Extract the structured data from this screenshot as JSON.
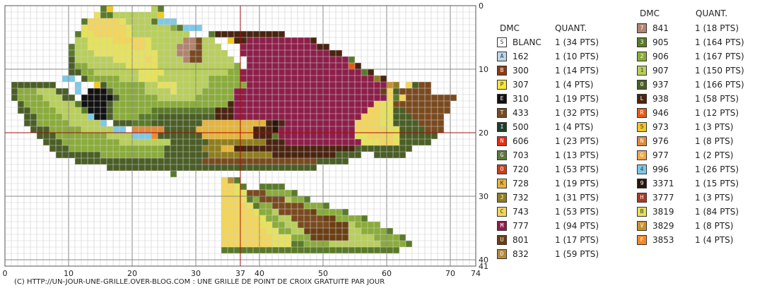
{
  "axis": {
    "top_right_label": "0",
    "x_ticks": [
      "0",
      "10",
      "20",
      "30",
      "37",
      "40",
      "50",
      "60",
      "70",
      "74"
    ],
    "y_ticks": [
      "10",
      "20",
      "30",
      "40",
      "41"
    ]
  },
  "legend": {
    "col1": {
      "header_code": "DMC",
      "header_qty": "QUANT.",
      "items": [
        {
          "symbol": "S",
          "code": "BLANC",
          "qty": "1 (34 PTS)",
          "color": "#ffffff",
          "ink": "#333333"
        },
        {
          "symbol": "A",
          "code": "162",
          "qty": "1 (10 PTS)",
          "color": "#bcd7ea",
          "ink": "#333333"
        },
        {
          "symbol": "B",
          "code": "300",
          "qty": "1 (14 PTS)",
          "color": "#8c3b14",
          "ink": "#ffffff"
        },
        {
          "symbol": "P",
          "code": "307",
          "qty": "1 (4 PTS)",
          "color": "#f9e63b",
          "ink": "#333333"
        },
        {
          "symbol": "E",
          "code": "310",
          "qty": "1 (19 PTS)",
          "color": "#111111",
          "ink": "#ffffff"
        },
        {
          "symbol": "T",
          "code": "433",
          "qty": "1 (32 PTS)",
          "color": "#7a4a1f",
          "ink": "#ffffff"
        },
        {
          "symbol": "I",
          "code": "500",
          "qty": "1 (4 PTS)",
          "color": "#1f3d2b",
          "ink": "#ffffff"
        },
        {
          "symbol": "N",
          "code": "606",
          "qty": "1 (23 PTS)",
          "color": "#ee2a14",
          "ink": "#ffffff"
        },
        {
          "symbol": "G",
          "code": "703",
          "qty": "1 (13 PTS)",
          "color": "#5d7a3a",
          "ink": "#ffffff"
        },
        {
          "symbol": "O",
          "code": "720",
          "qty": "1 (53 PTS)",
          "color": "#c8401a",
          "ink": "#ffffff"
        },
        {
          "symbol": "K",
          "code": "728",
          "qty": "1 (19 PTS)",
          "color": "#e6b43a",
          "ink": "#333333"
        },
        {
          "symbol": "J",
          "code": "732",
          "qty": "1 (31 PTS)",
          "color": "#8f7e1e",
          "ink": "#ffffff"
        },
        {
          "symbol": "C",
          "code": "743",
          "qty": "1 (53 PTS)",
          "color": "#f2d55a",
          "ink": "#333333"
        },
        {
          "symbol": "M",
          "code": "777",
          "qty": "1 (94 PTS)",
          "color": "#8e1e4a",
          "ink": "#ffffff"
        },
        {
          "symbol": "U",
          "code": "801",
          "qty": "1 (17 PTS)",
          "color": "#6b3f14",
          "ink": "#ffffff"
        },
        {
          "symbol": "D",
          "code": "832",
          "qty": "1 (59 PTS)",
          "color": "#b58a3a",
          "ink": "#ffffff"
        }
      ]
    },
    "col2": {
      "header_code": "DMC",
      "header_qty": "QUANT.",
      "items": [
        {
          "symbol": "7",
          "code": "841",
          "qty": "1 (18 PTS)",
          "color": "#b08470",
          "ink": "#ffffff"
        },
        {
          "symbol": "3",
          "code": "905",
          "qty": "1 (164 PTS)",
          "color": "#5a7a2a",
          "ink": "#ffffff"
        },
        {
          "symbol": "2",
          "code": "906",
          "qty": "1 (167 PTS)",
          "color": "#8aac3a",
          "ink": "#ffffff"
        },
        {
          "symbol": "1",
          "code": "907",
          "qty": "1 (150 PTS)",
          "color": "#b8cf5a",
          "ink": "#333333"
        },
        {
          "symbol": "0",
          "code": "937",
          "qty": "1 (166 PTS)",
          "color": "#4a5e26",
          "ink": "#ffffff"
        },
        {
          "symbol": "L",
          "code": "938",
          "qty": "1 (58 PTS)",
          "color": "#4a2410",
          "ink": "#ffffff"
        },
        {
          "symbol": "R",
          "code": "946",
          "qty": "1 (12 PTS)",
          "color": "#e85a14",
          "ink": "#ffffff"
        },
        {
          "symbol": "5",
          "code": "973",
          "qty": "1 (3 PTS)",
          "color": "#f2c81e",
          "ink": "#333333"
        },
        {
          "symbol": "N",
          "code": "976",
          "qty": "1 (8 PTS)",
          "color": "#e08a3a",
          "ink": "#ffffff"
        },
        {
          "symbol": "G",
          "code": "977",
          "qty": "1 (2 PTS)",
          "color": "#f0a84a",
          "ink": "#ffffff"
        },
        {
          "symbol": "4",
          "code": "996",
          "qty": "1 (26 PTS)",
          "color": "#7ec8e8",
          "ink": "#333333"
        },
        {
          "symbol": "9",
          "code": "3371",
          "qty": "1 (15 PTS)",
          "color": "#2a1608",
          "ink": "#ffffff"
        },
        {
          "symbol": "H",
          "code": "3777",
          "qty": "1 (3 PTS)",
          "color": "#a83a24",
          "ink": "#ffffff"
        },
        {
          "symbol": "B",
          "code": "3819",
          "qty": "1 (84 PTS)",
          "color": "#e6e25a",
          "ink": "#333333"
        },
        {
          "symbol": "V",
          "code": "3829",
          "qty": "1 (8 PTS)",
          "color": "#c8922a",
          "ink": "#ffffff"
        },
        {
          "symbol": "F",
          "code": "3853",
          "qty": "1 (4 PTS)",
          "color": "#f08a2a",
          "ink": "#ffffff"
        }
      ]
    }
  },
  "footer": "(C) HTTP://UN-JOUR-UNE-GRILLE.OVER-BLOG.COM : UNE GRILLE DE POINT DE CROIX GRATUITE PAR JOUR"
}
